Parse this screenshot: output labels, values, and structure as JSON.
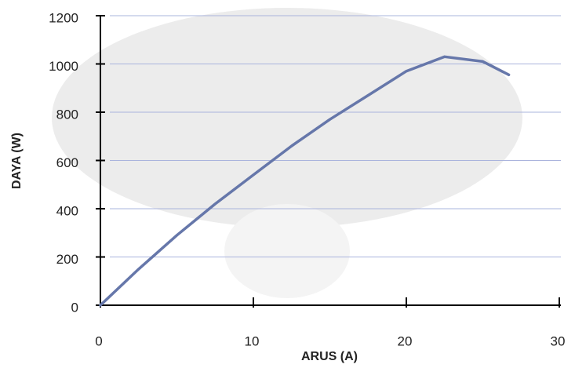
{
  "chart_data": {
    "type": "line",
    "x_label": "ARUS (A)",
    "y_label": "DAYA (W)",
    "x": [
      0,
      2.5,
      5,
      7.5,
      10,
      12.5,
      15,
      17.5,
      20,
      22.5,
      25,
      26.7
    ],
    "values": [
      0,
      150,
      290,
      420,
      540,
      660,
      770,
      870,
      970,
      1030,
      1010,
      955
    ],
    "color": "#6677aa",
    "xlim": [
      0,
      30
    ],
    "xticks": [
      0,
      10,
      20,
      30
    ],
    "ylim": [
      0,
      1200
    ],
    "yticks": [
      0,
      200,
      400,
      600,
      800,
      1000,
      1200
    ],
    "grid": true
  }
}
